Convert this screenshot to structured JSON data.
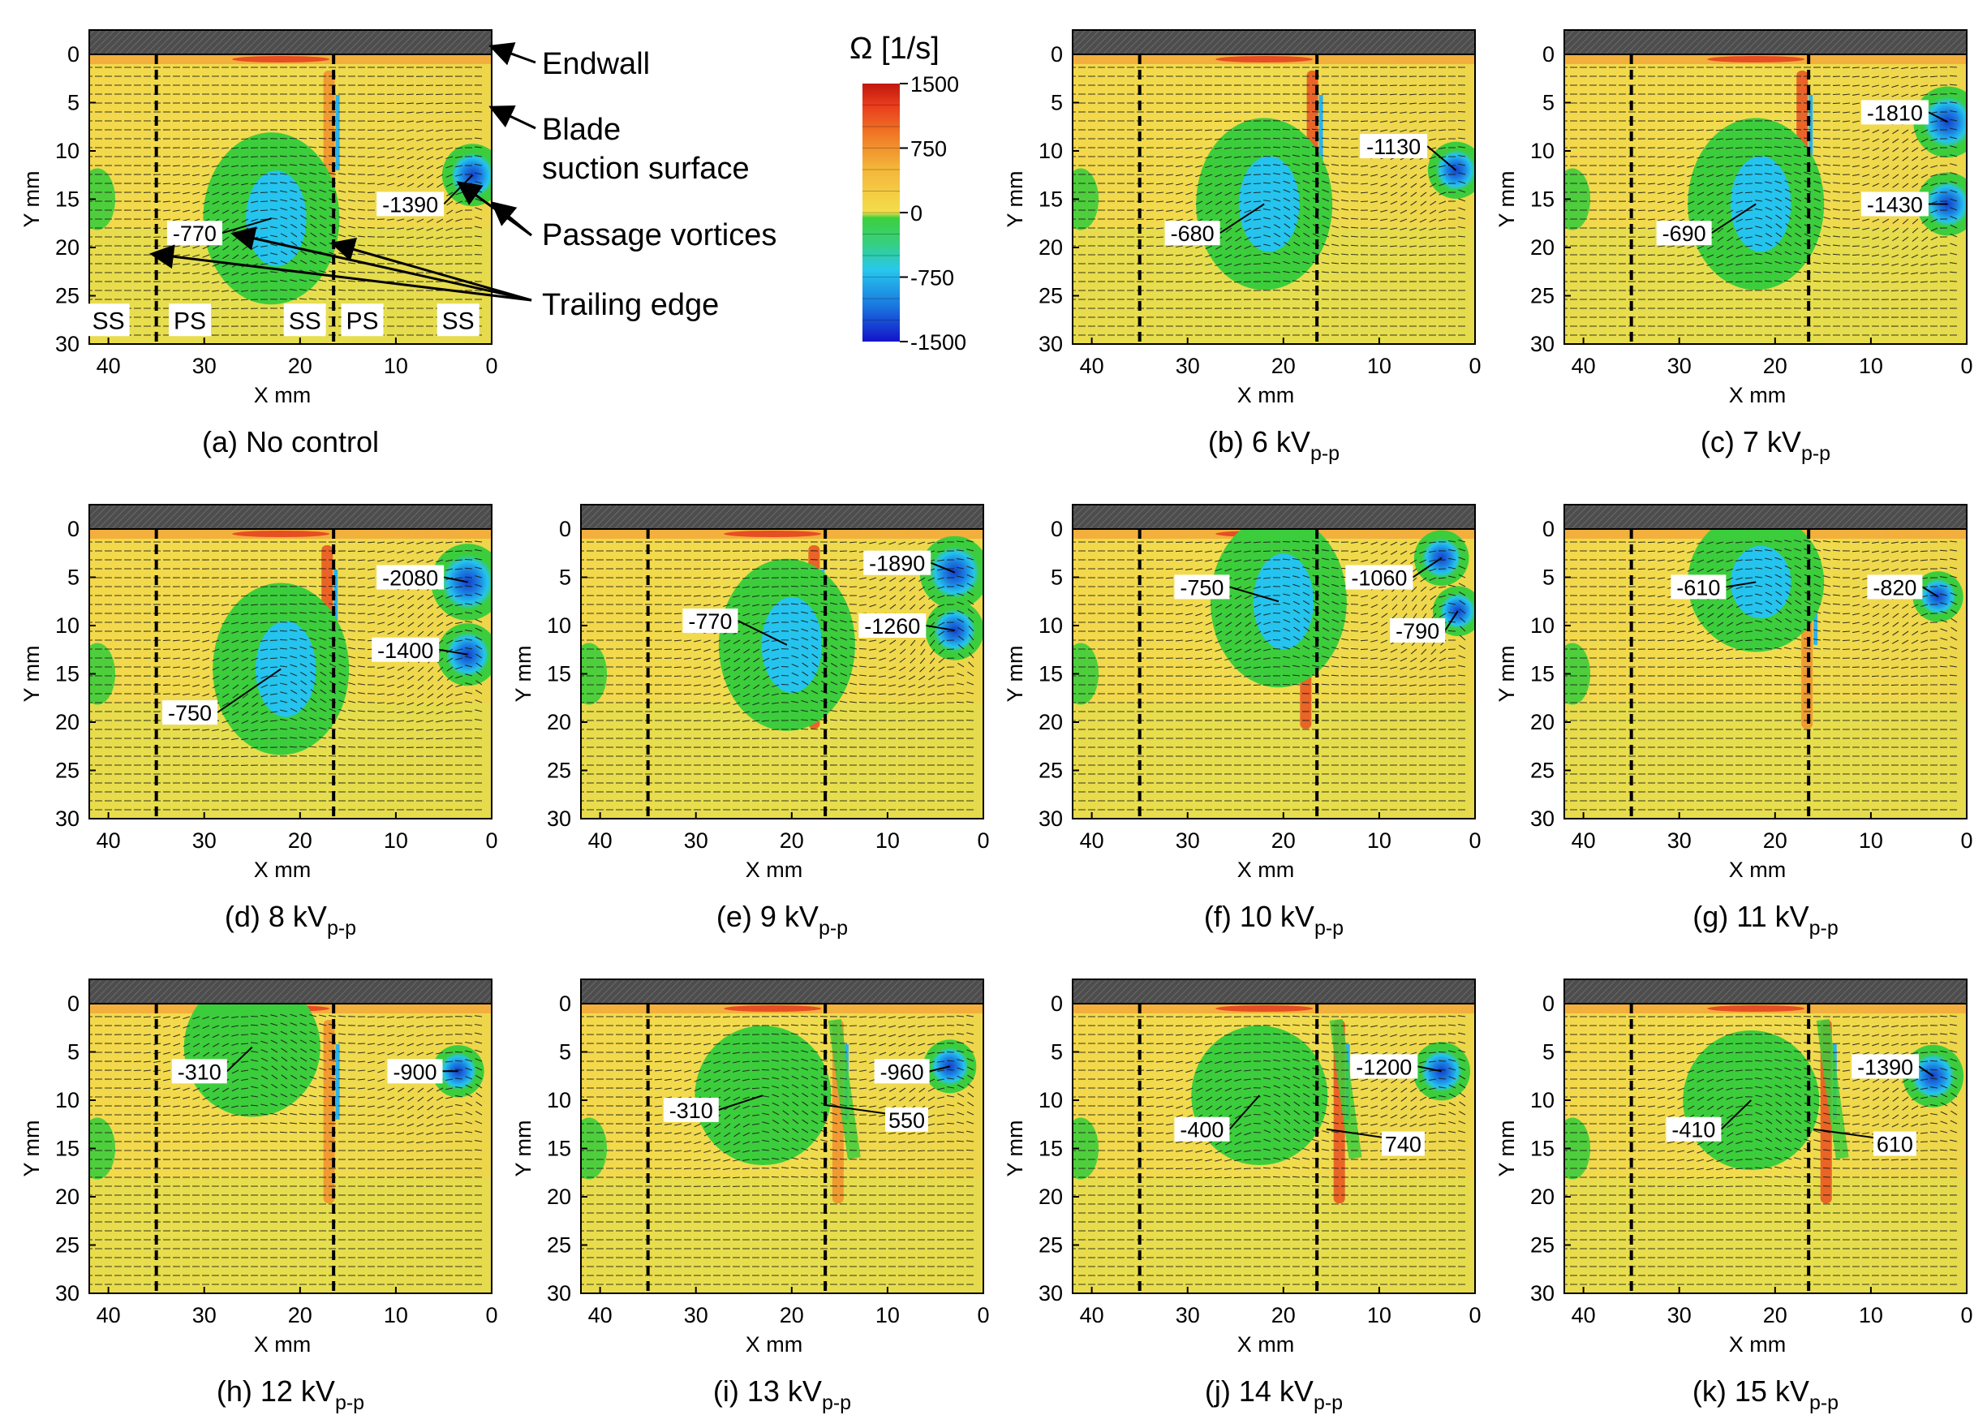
{
  "figure": {
    "axis_x_label": "X mm",
    "axis_y_label": "Y mm",
    "x_ticks": [
      "40",
      "30",
      "20",
      "10",
      "0"
    ],
    "y_ticks": [
      "0",
      "5",
      "10",
      "15",
      "20",
      "25",
      "30"
    ],
    "colorbar": {
      "title": "Ω [1/s]",
      "tick_labels": [
        "1500",
        "750",
        "0",
        "-750",
        "-1500"
      ],
      "range": [
        -1500,
        1500
      ]
    },
    "annotations": {
      "endwall": "Endwall",
      "blade_line1": "Blade",
      "blade_line2": "suction surface",
      "passage_vortices": "Passage vortices",
      "trailing_edge": "Trailing edge"
    },
    "region_labels": [
      "SS",
      "PS",
      "SS",
      "PS",
      "SS"
    ],
    "colors": {
      "endwall_bar": "#4d4d4d",
      "background_field": "#f2d84a",
      "vortex_mid": "#3ccd3c",
      "vortex_core": "#25c4ee",
      "vortex_peak": "#1440c8",
      "positive_peak": "#e02418"
    }
  },
  "chart_data": [
    {
      "type": "heatmap",
      "panel": "a",
      "caption_prefix": "(a)",
      "caption_value": "No control",
      "caption_sub": "",
      "title": "No control",
      "xlabel": "X mm",
      "ylabel": "Y mm",
      "xlim": [
        42,
        0
      ],
      "ylim": [
        30,
        0
      ],
      "trailing_edges_x": [
        35,
        16.5
      ],
      "vortices": [
        {
          "x": 23,
          "y": 17,
          "value": -770,
          "label": "-770",
          "label_at": [
            31,
            18.5
          ]
        },
        {
          "x": 2,
          "y": 12.5,
          "value": -1390,
          "label": "-1390",
          "label_at": [
            8.5,
            15.5
          ]
        }
      ],
      "positive_lines": [
        {
          "x": 16.8,
          "value": 550
        }
      ]
    },
    {
      "type": "heatmap",
      "panel": "b",
      "caption_prefix": "(b)",
      "caption_value": "6 kV",
      "caption_sub": "p-p",
      "xlabel": "X mm",
      "ylabel": "Y mm",
      "xlim": [
        42,
        0
      ],
      "ylim": [
        30,
        0
      ],
      "trailing_edges_x": [
        35,
        16.5
      ],
      "vortices": [
        {
          "x": 22,
          "y": 15.5,
          "value": -680,
          "label": "-680",
          "label_at": [
            29.5,
            18.5
          ]
        },
        {
          "x": 2,
          "y": 12,
          "value": -1130,
          "label": "-1130",
          "label_at": [
            8.5,
            9.5
          ]
        }
      ],
      "positive_lines": [
        {
          "x": 16.8,
          "value": 600
        }
      ]
    },
    {
      "type": "heatmap",
      "panel": "c",
      "caption_prefix": "(c)",
      "caption_value": "7 kV",
      "caption_sub": "p-p",
      "xlabel": "X mm",
      "ylabel": "Y mm",
      "xlim": [
        42,
        0
      ],
      "ylim": [
        30,
        0
      ],
      "trailing_edges_x": [
        35,
        16.5
      ],
      "vortices": [
        {
          "x": 22,
          "y": 15.5,
          "value": -690,
          "label": "-690",
          "label_at": [
            29.5,
            18.5
          ]
        },
        {
          "x": 2,
          "y": 7,
          "value": -1810,
          "label": "-1810",
          "label_at": [
            7.5,
            6
          ]
        },
        {
          "x": 2,
          "y": 15.5,
          "value": -1430,
          "label": "-1430",
          "label_at": [
            7.5,
            15.5
          ]
        }
      ],
      "positive_lines": [
        {
          "x": 17,
          "value": 600
        }
      ]
    },
    {
      "type": "heatmap",
      "panel": "d",
      "caption_prefix": "(d)",
      "caption_value": "8 kV",
      "caption_sub": "p-p",
      "xlabel": "X mm",
      "ylabel": "Y mm",
      "xlim": [
        42,
        0
      ],
      "ylim": [
        30,
        0
      ],
      "trailing_edges_x": [
        35,
        16.5
      ],
      "vortices": [
        {
          "x": 22,
          "y": 14.5,
          "value": -750,
          "label": "-750",
          "label_at": [
            31.5,
            19
          ]
        },
        {
          "x": 2.5,
          "y": 5.5,
          "value": -2080,
          "label": "-2080",
          "label_at": [
            8.5,
            5
          ]
        },
        {
          "x": 2.5,
          "y": 13,
          "value": -1400,
          "label": "-1400",
          "label_at": [
            9,
            12.5
          ]
        }
      ],
      "positive_lines": [
        {
          "x": 17,
          "value": 650
        }
      ]
    },
    {
      "type": "heatmap",
      "panel": "e",
      "caption_prefix": "(e)",
      "caption_value": "9 kV",
      "caption_sub": "p-p",
      "xlabel": "X mm",
      "ylabel": "Y mm",
      "xlim": [
        42,
        0
      ],
      "ylim": [
        30,
        0
      ],
      "trailing_edges_x": [
        35,
        16.5
      ],
      "vortices": [
        {
          "x": 20.5,
          "y": 12,
          "value": -770,
          "label": "-770",
          "label_at": [
            28.5,
            9.5
          ]
        },
        {
          "x": 3,
          "y": 4.5,
          "value": -1890,
          "label": "-1890",
          "label_at": [
            9,
            3.5
          ]
        },
        {
          "x": 3,
          "y": 10.5,
          "value": -1260,
          "label": "-1260",
          "label_at": [
            9.5,
            10
          ]
        }
      ],
      "positive_lines": [
        {
          "x": 17.5,
          "value": 600
        }
      ]
    },
    {
      "type": "heatmap",
      "panel": "f",
      "caption_prefix": "(f)",
      "caption_value": "10 kV",
      "caption_sub": "p-p",
      "xlabel": "X mm",
      "ylabel": "Y mm",
      "xlim": [
        42,
        0
      ],
      "ylim": [
        30,
        0
      ],
      "trailing_edges_x": [
        35,
        16.5
      ],
      "vortices": [
        {
          "x": 20.5,
          "y": 7.5,
          "value": -750,
          "label": "-750",
          "label_at": [
            28.5,
            6
          ]
        },
        {
          "x": 3.5,
          "y": 3,
          "value": -1060,
          "label": "-1060",
          "label_at": [
            10,
            5
          ]
        },
        {
          "x": 1.8,
          "y": 8.5,
          "value": -790,
          "label": "-790",
          "label_at": [
            6,
            10.5
          ]
        }
      ],
      "positive_lines": [
        {
          "x": 17.5,
          "value": 700
        }
      ]
    },
    {
      "type": "heatmap",
      "panel": "g",
      "caption_prefix": "(g)",
      "caption_value": "11 kV",
      "caption_sub": "p-p",
      "xlabel": "X mm",
      "ylabel": "Y mm",
      "xlim": [
        42,
        0
      ],
      "ylim": [
        30,
        0
      ],
      "trailing_edges_x": [
        35,
        16.5
      ],
      "vortices": [
        {
          "x": 22,
          "y": 5.5,
          "value": -610,
          "label": "-610",
          "label_at": [
            28,
            6
          ]
        },
        {
          "x": 3,
          "y": 7,
          "value": -820,
          "label": "-820",
          "label_at": [
            7.5,
            6
          ]
        }
      ],
      "positive_lines": [
        {
          "x": 16.5,
          "value": 500
        }
      ]
    },
    {
      "type": "heatmap",
      "panel": "h",
      "caption_prefix": "(h)",
      "caption_value": "12 kV",
      "caption_sub": "p-p",
      "xlabel": "X mm",
      "ylabel": "Y mm",
      "xlim": [
        42,
        0
      ],
      "ylim": [
        30,
        0
      ],
      "trailing_edges_x": [
        35,
        16.5
      ],
      "vortices": [
        {
          "x": 25,
          "y": 4.5,
          "value": -310,
          "label": "-310",
          "label_at": [
            30.5,
            7
          ]
        },
        {
          "x": 3.5,
          "y": 7,
          "value": -900,
          "label": "-900",
          "label_at": [
            8,
            7
          ]
        }
      ],
      "positive_lines": [
        {
          "x": 16.8,
          "value": 300
        }
      ]
    },
    {
      "type": "heatmap",
      "panel": "i",
      "caption_prefix": "(i)",
      "caption_value": "13 kV",
      "caption_sub": "p-p",
      "xlabel": "X mm",
      "ylabel": "Y mm",
      "xlim": [
        42,
        0
      ],
      "ylim": [
        30,
        0
      ],
      "trailing_edges_x": [
        35,
        16.5
      ],
      "vortices": [
        {
          "x": 23,
          "y": 9.5,
          "value": -310,
          "label": "-310",
          "label_at": [
            30.5,
            11
          ]
        },
        {
          "x": 3.5,
          "y": 6.5,
          "value": -960,
          "label": "-960",
          "label_at": [
            8.5,
            7
          ]
        }
      ],
      "positive_lines": [
        {
          "x": 15,
          "value": 550,
          "label": "550",
          "label_at": [
            8,
            12
          ]
        }
      ]
    },
    {
      "type": "heatmap",
      "panel": "j",
      "caption_prefix": "(j)",
      "caption_value": "14 kV",
      "caption_sub": "p-p",
      "xlabel": "X mm",
      "ylabel": "Y mm",
      "xlim": [
        42,
        0
      ],
      "ylim": [
        30,
        0
      ],
      "trailing_edges_x": [
        35,
        16.5
      ],
      "vortices": [
        {
          "x": 22.5,
          "y": 9.5,
          "value": -400,
          "label": "-400",
          "label_at": [
            28.5,
            13
          ]
        },
        {
          "x": 3.5,
          "y": 7,
          "value": -1200,
          "label": "-1200",
          "label_at": [
            9.5,
            6.5
          ]
        }
      ],
      "positive_lines": [
        {
          "x": 14,
          "value": 740,
          "label": "740",
          "label_at": [
            7.5,
            14.5
          ]
        }
      ]
    },
    {
      "type": "heatmap",
      "panel": "k",
      "caption_prefix": "(k)",
      "caption_value": "15 kV",
      "caption_sub": "p-p",
      "xlabel": "X mm",
      "ylabel": "Y mm",
      "xlim": [
        42,
        0
      ],
      "ylim": [
        30,
        0
      ],
      "trailing_edges_x": [
        35,
        16.5
      ],
      "vortices": [
        {
          "x": 22.5,
          "y": 10,
          "value": -410,
          "label": "-410",
          "label_at": [
            28.5,
            13
          ]
        },
        {
          "x": 3.5,
          "y": 7.5,
          "value": -1390,
          "label": "-1390",
          "label_at": [
            8.5,
            6.5
          ]
        }
      ],
      "positive_lines": [
        {
          "x": 14.5,
          "value": 610,
          "label": "610",
          "label_at": [
            7.5,
            14.5
          ]
        }
      ]
    }
  ]
}
